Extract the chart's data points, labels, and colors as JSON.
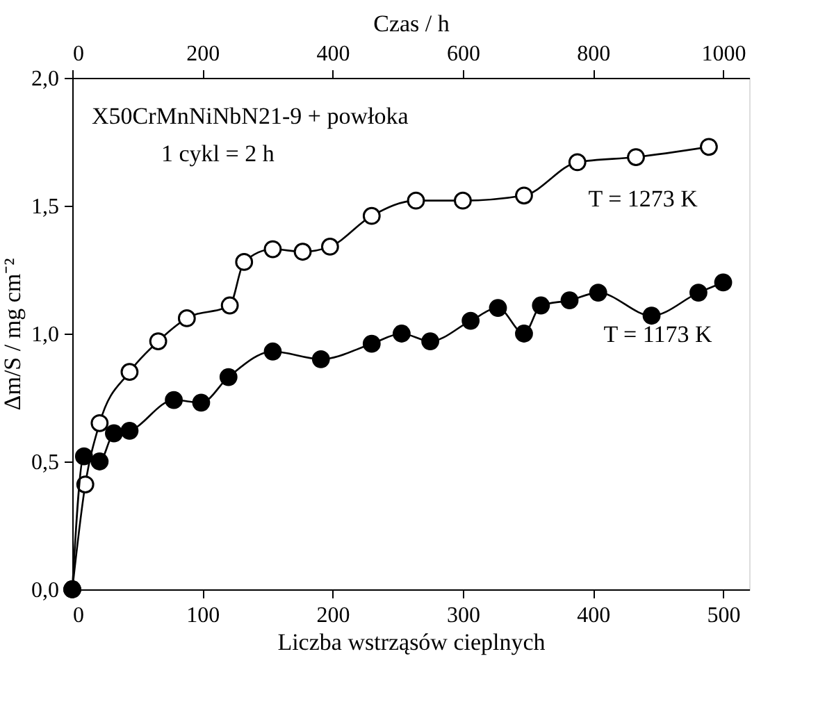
{
  "chart_data": {
    "type": "line",
    "xlabel": "Liczba wstrząsów cieplnych",
    "x2label": "Czas    / h",
    "ylabel": "Δm/S    / mg cm⁻²",
    "annotations": [
      "X50CrMnNiNbN21-9 + powłoka",
      "1 cykl = 2 h"
    ],
    "xlim": [
      0,
      520
    ],
    "xticks": [
      0,
      100,
      200,
      300,
      400,
      500
    ],
    "x2lim": [
      0,
      1040
    ],
    "x2ticks": [
      0,
      200,
      400,
      600,
      800,
      1000
    ],
    "ylim": [
      0,
      2
    ],
    "yticks": [
      {
        "value": 0,
        "label": "0,0"
      },
      {
        "value": 0.5,
        "label": "0,5"
      },
      {
        "value": 1,
        "label": "1,0"
      },
      {
        "value": 1.5,
        "label": "1,5"
      },
      {
        "value": 2,
        "label": "2,0"
      }
    ],
    "grid": false,
    "marker": "circle",
    "line_style": "solid",
    "series": [
      {
        "name": "T = 1273 K",
        "color": "#000000",
        "x": [
          0,
          10,
          21,
          44,
          66,
          88,
          121,
          132,
          154,
          177,
          198,
          230,
          264,
          300,
          347,
          388,
          433,
          489
        ],
        "values": [
          0,
          0.41,
          0.65,
          0.85,
          0.97,
          1.06,
          1.11,
          1.28,
          1.33,
          1.32,
          1.34,
          1.46,
          1.52,
          1.52,
          1.54,
          1.67,
          1.69,
          1.73
        ]
      },
      {
        "name": "T = 1173 K",
        "color": "#000000",
        "x": [
          0,
          9,
          21,
          32,
          44,
          78,
          99,
          120,
          154,
          191,
          230,
          253,
          275,
          306,
          327,
          347,
          360,
          382,
          404,
          445,
          481,
          500
        ],
        "values": [
          0,
          0.52,
          0.5,
          0.61,
          0.62,
          0.74,
          0.73,
          0.83,
          0.93,
          0.9,
          0.96,
          1.0,
          0.97,
          1.05,
          1.1,
          1.0,
          1.11,
          1.13,
          1.16,
          1.07,
          1.16,
          1.2
        ]
      }
    ]
  }
}
